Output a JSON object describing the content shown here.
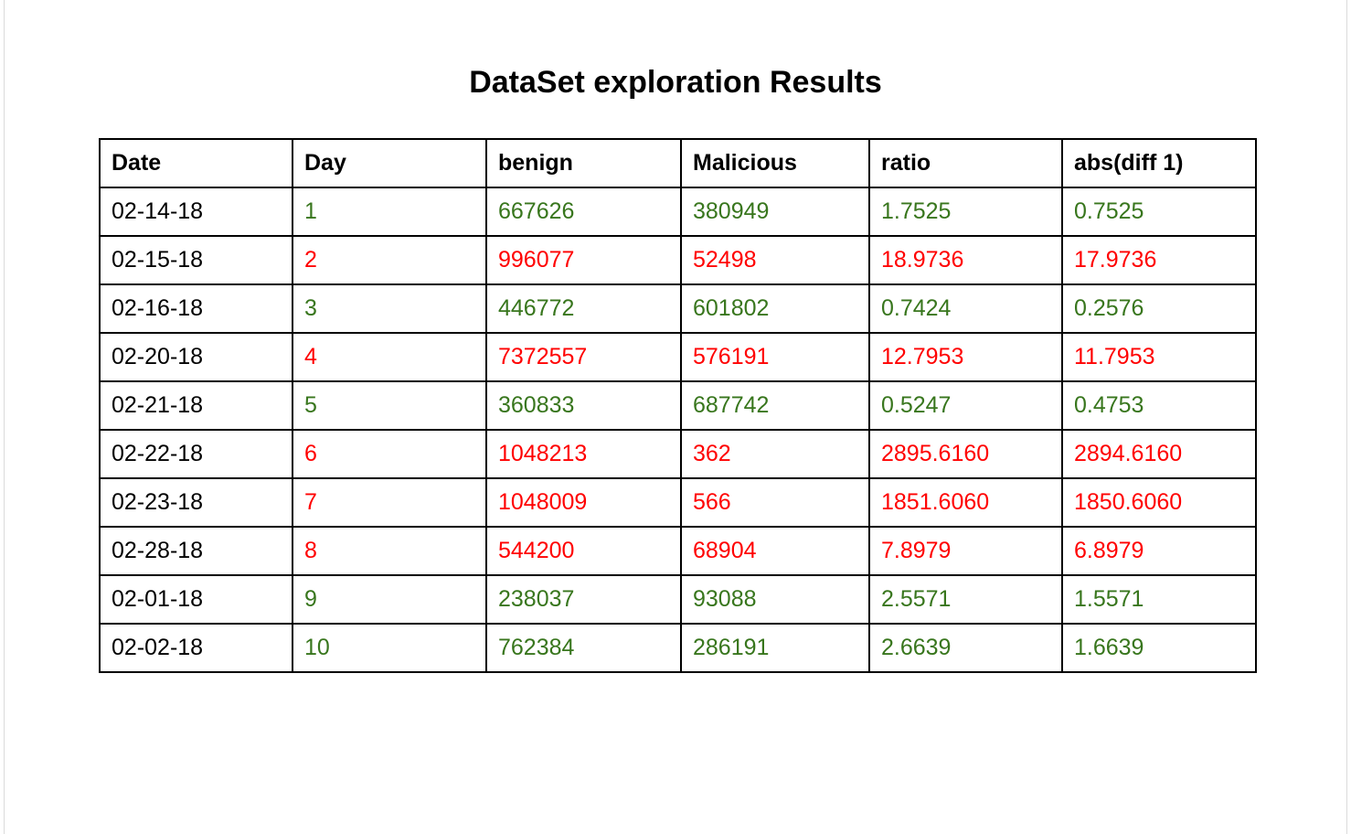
{
  "document": {
    "title": "DataSet exploration Results"
  },
  "colors": {
    "good": "#38761d",
    "bad": "#ff0000",
    "text": "#000000"
  },
  "table": {
    "headers": [
      "Date",
      "Day",
      "benign",
      "Malicious",
      "ratio",
      "abs(diff 1)"
    ],
    "rows": [
      {
        "status": "good",
        "cells": [
          "02-14-18",
          "1",
          "667626",
          "380949",
          "1.7525",
          "0.7525"
        ]
      },
      {
        "status": "bad",
        "cells": [
          "02-15-18",
          "2",
          "996077",
          "52498",
          "18.9736",
          "17.9736"
        ]
      },
      {
        "status": "good",
        "cells": [
          "02-16-18",
          "3",
          "446772",
          "601802",
          "0.7424",
          "0.2576"
        ]
      },
      {
        "status": "bad",
        "cells": [
          "02-20-18",
          "4",
          "7372557",
          "576191",
          "12.7953",
          "11.7953"
        ]
      },
      {
        "status": "good",
        "cells": [
          "02-21-18",
          "5",
          "360833",
          "687742",
          "0.5247",
          "0.4753"
        ]
      },
      {
        "status": "bad",
        "cells": [
          "02-22-18",
          "6",
          "1048213",
          "362",
          "2895.6160",
          "2894.6160"
        ]
      },
      {
        "status": "bad",
        "cells": [
          "02-23-18",
          "7",
          "1048009",
          "566",
          "1851.6060",
          "1850.6060"
        ]
      },
      {
        "status": "bad",
        "cells": [
          "02-28-18",
          "8",
          "544200",
          "68904",
          "7.8979",
          "6.8979"
        ]
      },
      {
        "status": "good",
        "cells": [
          "02-01-18",
          "9",
          "238037",
          "93088",
          "2.5571",
          "1.5571"
        ]
      },
      {
        "status": "good",
        "cells": [
          "02-02-18",
          "10",
          "762384",
          "286191",
          "2.6639",
          "1.6639"
        ]
      }
    ]
  }
}
